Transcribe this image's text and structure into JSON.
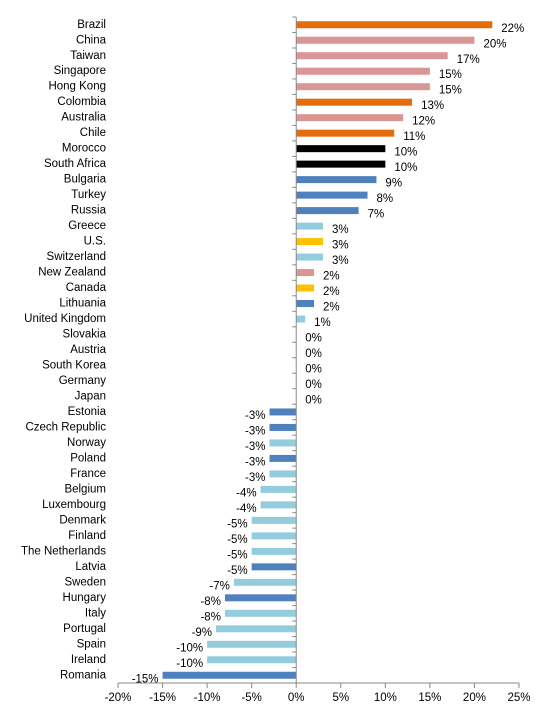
{
  "chart_data": {
    "type": "bar",
    "orientation": "horizontal",
    "categories": [
      "Brazil",
      "China",
      "Taiwan",
      "Singapore",
      "Hong Kong",
      "Colombia",
      "Australia",
      "Chile",
      "Morocco",
      "South Africa",
      "Bulgaria",
      "Turkey",
      "Russia",
      "Greece",
      "U.S.",
      "Switzerland",
      "New Zealand",
      "Canada",
      "Lithuania",
      "United Kingdom",
      "Slovakia",
      "Austria",
      "South Korea",
      "Germany",
      "Japan",
      "Estonia",
      "Czech Republic",
      "Norway",
      "Poland",
      "France",
      "Belgium",
      "Luxembourg",
      "Denmark",
      "Finland",
      "The Netherlands",
      "Latvia",
      "Sweden",
      "Hungary",
      "Italy",
      "Portugal",
      "Spain",
      "Ireland",
      "Romania"
    ],
    "values": [
      22,
      20,
      17,
      15,
      15,
      13,
      12,
      11,
      10,
      10,
      9,
      8,
      7,
      3,
      3,
      3,
      2,
      2,
      2,
      1,
      0,
      0,
      0,
      0,
      0,
      -3,
      -3,
      -3,
      -3,
      -3,
      -4,
      -4,
      -5,
      -5,
      -5,
      -5,
      -7,
      -8,
      -8,
      -9,
      -10,
      -10,
      -15
    ],
    "value_labels": [
      "22%",
      "20%",
      "17%",
      "15%",
      "15%",
      "13%",
      "12%",
      "11%",
      "10%",
      "10%",
      "9%",
      "8%",
      "7%",
      "3%",
      "3%",
      "3%",
      "2%",
      "2%",
      "2%",
      "1%",
      "0%",
      "0%",
      "0%",
      "0%",
      "0%",
      "-3%",
      "-3%",
      "-3%",
      "-3%",
      "-3%",
      "-4%",
      "-4%",
      "-5%",
      "-5%",
      "-5%",
      "-5%",
      "-7%",
      "-8%",
      "-8%",
      "-9%",
      "-10%",
      "-10%",
      "-15%"
    ],
    "colors": [
      "#e46c0a",
      "#d99694",
      "#d99694",
      "#d99694",
      "#d99694",
      "#e46c0a",
      "#d99694",
      "#e46c0a",
      "#000000",
      "#000000",
      "#4f81bd",
      "#4f81bd",
      "#4f81bd",
      "#93cddd",
      "#ffc000",
      "#93cddd",
      "#d99694",
      "#ffc000",
      "#4f81bd",
      "#93cddd",
      "#93cddd",
      "#93cddd",
      "#93cddd",
      "#93cddd",
      "#93cddd",
      "#4f81bd",
      "#4f81bd",
      "#93cddd",
      "#4f81bd",
      "#93cddd",
      "#93cddd",
      "#93cddd",
      "#93cddd",
      "#93cddd",
      "#93cddd",
      "#4f81bd",
      "#93cddd",
      "#4f81bd",
      "#93cddd",
      "#93cddd",
      "#93cddd",
      "#93cddd",
      "#4f81bd"
    ],
    "xlim": [
      -20,
      25
    ],
    "xticks": [
      {
        "value": -20,
        "label": "-20%"
      },
      {
        "value": -15,
        "label": "-15%"
      },
      {
        "value": -10,
        "label": "-10%"
      },
      {
        "value": -5,
        "label": "-5%"
      },
      {
        "value": 0,
        "label": "0%"
      },
      {
        "value": 5,
        "label": "5%"
      },
      {
        "value": 10,
        "label": "10%"
      },
      {
        "value": 15,
        "label": "15%"
      },
      {
        "value": 20,
        "label": "20%"
      },
      {
        "value": 25,
        "label": "25%"
      }
    ],
    "grid": false
  }
}
